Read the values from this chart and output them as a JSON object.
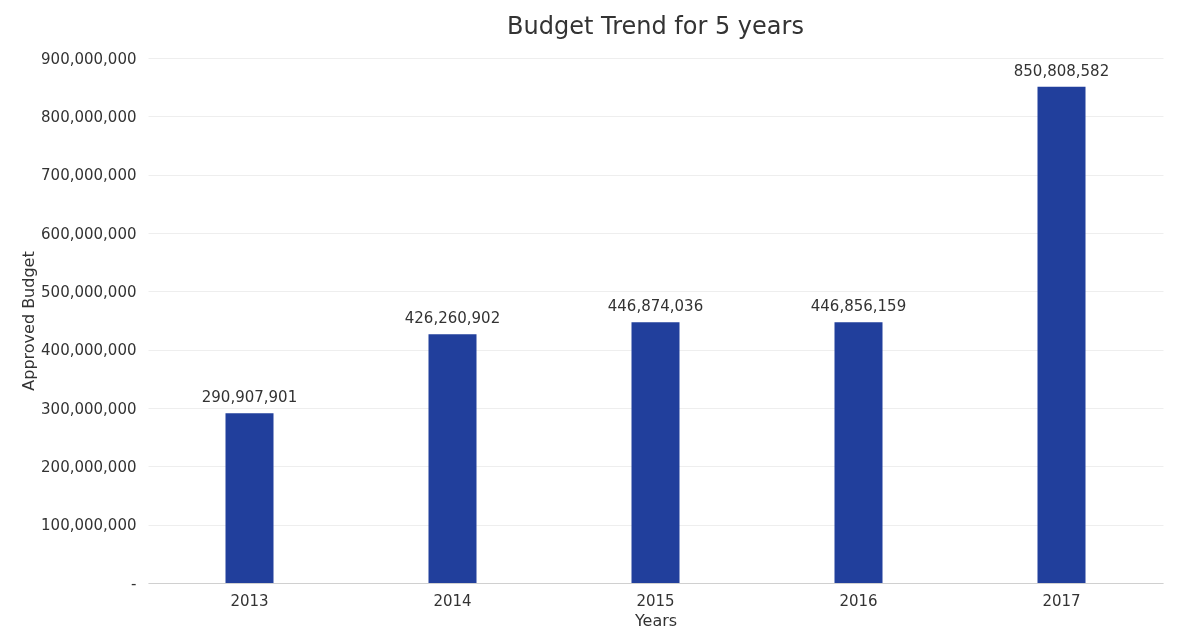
{
  "chart_data": {
    "type": "bar",
    "title": "Budget Trend for 5 years",
    "xlabel": "Years",
    "ylabel": "Approved Budget",
    "categories": [
      "2013",
      "2014",
      "2015",
      "2016",
      "2017"
    ],
    "values": [
      290907901,
      426260902,
      446874036,
      446856159,
      850808582
    ],
    "color": "#213f9c",
    "ylim": [
      0,
      900000000
    ],
    "yticks": [
      {
        "value": 0,
        "label": "-"
      },
      {
        "value": 100000000,
        "label": "100,000,000"
      },
      {
        "value": 200000000,
        "label": "200,000,000"
      },
      {
        "value": 300000000,
        "label": "300,000,000"
      },
      {
        "value": 400000000,
        "label": "400,000,000"
      },
      {
        "value": 500000000,
        "label": "500,000,000"
      },
      {
        "value": 600000000,
        "label": "600,000,000"
      },
      {
        "value": 700000000,
        "label": "700,000,000"
      },
      {
        "value": 800000000,
        "label": "800,000,000"
      },
      {
        "value": 900000000,
        "label": "900,000,000"
      }
    ],
    "value_labels": [
      "290,907,901",
      "426,260,902",
      "446,874,036",
      "446,856,159",
      "850,808,582"
    ],
    "grid": "y"
  }
}
